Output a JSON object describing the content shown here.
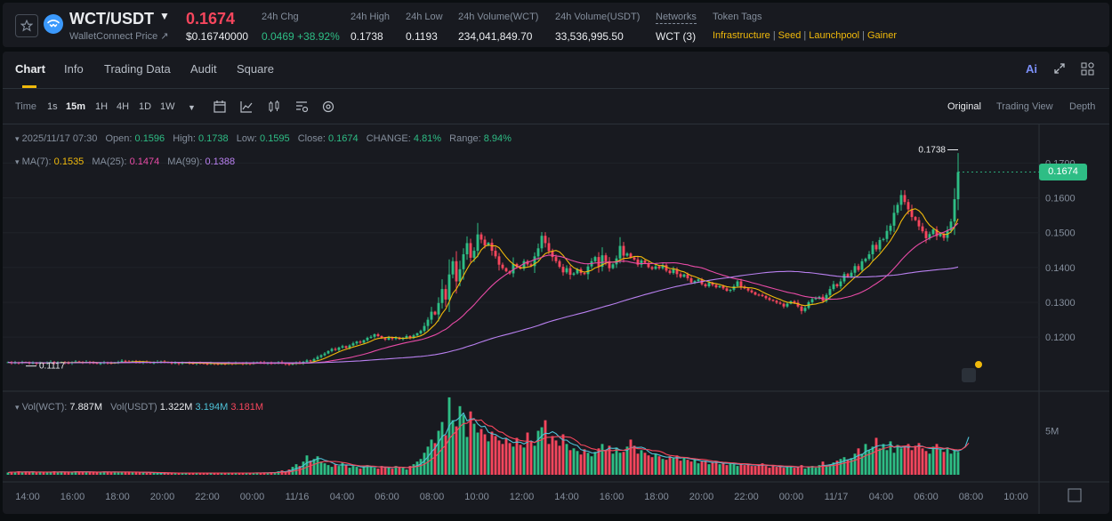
{
  "header": {
    "pair": "WCT/USDT",
    "subtitle": "WalletConnect Price ↗",
    "price": "0.1674",
    "price_usd": "$0.16740000",
    "stats": [
      {
        "label": "24h Chg",
        "value": "0.0469 +38.92%"
      },
      {
        "label": "24h High",
        "value": "0.1738"
      },
      {
        "label": "24h Low",
        "value": "0.1193"
      },
      {
        "label": "24h Volume(WCT)",
        "value": "234,041,849.70"
      },
      {
        "label": "24h Volume(USDT)",
        "value": "33,536,995.50"
      }
    ],
    "networks_label": "Networks",
    "networks_value": "WCT (3)",
    "tags_label": "Token Tags",
    "tags": [
      "Infrastructure",
      "Seed",
      "Launchpool",
      "Gainer"
    ],
    "tag_separator": "|"
  },
  "tabs": [
    "Chart",
    "Info",
    "Trading Data",
    "Audit",
    "Square"
  ],
  "right_icons": {
    "ai": "Ai"
  },
  "toolbar": {
    "timeframes": [
      "Time",
      "1s",
      "15m",
      "1H",
      "4H",
      "1D",
      "1W"
    ],
    "active_timeframe": "15m",
    "views": [
      "Original",
      "Trading View",
      "Depth"
    ],
    "active_view": "Original"
  },
  "legend": {
    "ohlc": {
      "date": "2025/11/17 07:30",
      "open_label": "Open:",
      "open": "0.1596",
      "high_label": "High:",
      "high": "0.1738",
      "low_label": "Low:",
      "low": "0.1595",
      "close_label": "Close:",
      "close": "0.1674",
      "change_label": "CHANGE:",
      "change": "4.81%",
      "range_label": "Range:",
      "range": "8.94%"
    },
    "ma": {
      "ma7_label": "MA(7):",
      "ma7": "0.1535",
      "ma25_label": "MA(25):",
      "ma25": "0.1474",
      "ma99_label": "MA(99):",
      "ma99": "0.1388"
    },
    "vol": {
      "wct_label": "Vol(WCT):",
      "wct": "7.887M",
      "usdt_label": "Vol(USDT)",
      "usdt": "1.322M",
      "ma1": "3.194M",
      "ma2": "3.181M"
    }
  },
  "colors": {
    "up": "#2ebd85",
    "down": "#f6465d",
    "ma7": "#f0b90b",
    "ma25": "#e84ba6",
    "ma99": "#b980f0",
    "vol_ma1": "#4fc3d8",
    "vol_ma2": "#f6465d",
    "accent": "#f0b90b"
  },
  "chart_data": {
    "type": "candlestick",
    "price_axis": [
      "0.1700",
      "0.1600",
      "0.1500",
      "0.1400",
      "0.1300",
      "0.1200"
    ],
    "ylim": [
      0.106,
      0.1775
    ],
    "volume_axis": [
      "5M"
    ],
    "volume_ylim": [
      0,
      9500000
    ],
    "time_axis": [
      "14:00",
      "16:00",
      "18:00",
      "20:00",
      "22:00",
      "00:00",
      "11/16",
      "04:00",
      "06:00",
      "08:00",
      "10:00",
      "12:00",
      "14:00",
      "16:00",
      "18:00",
      "20:00",
      "22:00",
      "00:00",
      "11/17",
      "04:00",
      "06:00",
      "08:00",
      "10:00"
    ],
    "current_price": "0.1674",
    "high_marker": "0.1738",
    "low_marker": "0.1117",
    "series": [
      {
        "name": "price (close)",
        "values": [
          0.1128,
          0.1125,
          0.1127,
          0.1126,
          0.1128,
          0.1127,
          0.1125,
          0.1126,
          0.1124,
          0.1126,
          0.1125,
          0.1127,
          0.1129,
          0.1126,
          0.1127,
          0.1128,
          0.1126,
          0.1125,
          0.1128,
          0.113,
          0.1128,
          0.1127,
          0.1129,
          0.1127,
          0.1126,
          0.1124,
          0.1125,
          0.1127,
          0.1126,
          0.1125,
          0.1127,
          0.1129,
          0.1132,
          0.113,
          0.1129,
          0.1131,
          0.1128,
          0.1127,
          0.1129,
          0.1128,
          0.1126,
          0.1127,
          0.1129,
          0.113,
          0.1128,
          0.1127,
          0.1125,
          0.1126,
          0.1124,
          0.1126,
          0.1127,
          0.1125,
          0.1124,
          0.1126,
          0.1125,
          0.1124,
          0.1123,
          0.1125,
          0.1124,
          0.1122,
          0.1124,
          0.1123,
          0.1125,
          0.1124,
          0.1126,
          0.1125,
          0.1123,
          0.1125,
          0.1124,
          0.1126,
          0.1128,
          0.1127,
          0.1125,
          0.1126,
          0.1124,
          0.1126,
          0.1128,
          0.1125,
          0.1123,
          0.1121,
          0.1124,
          0.1127,
          0.1125,
          0.1129,
          0.1133,
          0.1131,
          0.1137,
          0.1143,
          0.1148,
          0.1153,
          0.116,
          0.1166,
          0.1163,
          0.117,
          0.1174,
          0.1169,
          0.1176,
          0.1182,
          0.1187,
          0.1184,
          0.1191,
          0.1198,
          0.1201,
          0.1208,
          0.1203,
          0.1197,
          0.1193,
          0.1199,
          0.1195,
          0.1199,
          0.1194,
          0.1197,
          0.1203,
          0.1198,
          0.1205,
          0.1211,
          0.1218,
          0.1232,
          0.125,
          0.1273,
          0.1265,
          0.1298,
          0.1338,
          0.1308,
          0.138,
          0.1418,
          0.136,
          0.1395,
          0.1438,
          0.147,
          0.1428,
          0.1448,
          0.1495,
          0.148,
          0.1463,
          0.1471,
          0.1448,
          0.1432,
          0.1408,
          0.1398,
          0.1389,
          0.1383,
          0.141,
          0.1402,
          0.1397,
          0.1418,
          0.1409,
          0.1404,
          0.1432,
          0.1455,
          0.1491,
          0.147,
          0.1447,
          0.143,
          0.1418,
          0.1402,
          0.1386,
          0.1398,
          0.1379,
          0.1383,
          0.1395,
          0.1384,
          0.1381,
          0.1403,
          0.1418,
          0.143,
          0.1402,
          0.1435,
          0.1418,
          0.1398,
          0.1409,
          0.1426,
          0.1462,
          0.1434,
          0.144,
          0.1429,
          0.1423,
          0.1408,
          0.142,
          0.1413,
          0.1401,
          0.1396,
          0.1403,
          0.1398,
          0.1407,
          0.1391,
          0.1384,
          0.1395,
          0.1381,
          0.1373,
          0.138,
          0.1369,
          0.1357,
          0.1361,
          0.1366,
          0.1352,
          0.1346,
          0.1356,
          0.135,
          0.1343,
          0.1347,
          0.134,
          0.1333,
          0.1336,
          0.1346,
          0.136,
          0.1345,
          0.134,
          0.1334,
          0.1329,
          0.1322,
          0.1321,
          0.1318,
          0.1312,
          0.1307,
          0.1304,
          0.1299,
          0.1296,
          0.1288,
          0.1296,
          0.1303,
          0.1299,
          0.1288,
          0.1275,
          0.1284,
          0.13,
          0.1309,
          0.1312,
          0.1316,
          0.1304,
          0.1321,
          0.1338,
          0.1352,
          0.1346,
          0.136,
          0.1381,
          0.1374,
          0.1385,
          0.1404,
          0.1393,
          0.1418,
          0.1425,
          0.1438,
          0.1465,
          0.1452,
          0.1479,
          0.1482,
          0.1505,
          0.152,
          0.1557,
          0.158,
          0.1608,
          0.1588,
          0.1567,
          0.1545,
          0.1536,
          0.1518,
          0.1504,
          0.1484,
          0.1496,
          0.1509,
          0.149,
          0.1497,
          0.1485,
          0.1506,
          0.1532,
          0.1596,
          0.1674
        ]
      },
      {
        "name": "volume",
        "values": [
          0.25,
          0.35,
          0.3,
          0.4,
          0.28,
          0.32,
          0.3,
          0.38,
          0.25,
          0.3,
          0.28,
          0.33,
          0.3,
          0.4,
          0.27,
          0.35,
          0.3,
          0.28,
          0.32,
          0.4,
          0.35,
          0.3,
          0.28,
          0.33,
          0.3,
          0.27,
          0.35,
          0.38,
          0.3,
          0.28,
          0.32,
          0.3,
          0.35,
          0.3,
          0.28,
          0.27,
          0.32,
          0.3,
          0.25,
          0.22,
          0.24,
          0.2,
          0.22,
          0.19,
          0.2,
          0.22,
          0.18,
          0.2,
          0.19,
          0.21,
          0.2,
          0.22,
          0.18,
          0.2,
          0.21,
          0.19,
          0.2,
          0.18,
          0.22,
          0.2,
          0.19,
          0.21,
          0.2,
          0.22,
          0.18,
          0.2,
          0.19,
          0.21,
          0.2,
          0.22,
          0.25,
          0.2,
          0.22,
          0.24,
          0.3,
          0.25,
          0.4,
          0.5,
          0.35,
          0.6,
          0.9,
          1.2,
          1.0,
          1.5,
          2.2,
          1.6,
          1.8,
          2.1,
          1.5,
          1.3,
          1.1,
          0.9,
          1.2,
          1.0,
          1.4,
          1.1,
          0.8,
          1.0,
          0.9,
          0.7,
          1.0,
          1.1,
          0.9,
          0.8,
          0.7,
          1.0,
          0.8,
          0.9,
          0.7,
          1.0,
          0.8,
          0.9,
          0.6,
          1.0,
          1.2,
          1.5,
          1.8,
          2.5,
          3.2,
          4.0,
          3.6,
          5.0,
          6.0,
          4.5,
          8.8,
          6.2,
          5.5,
          7.8,
          6.8,
          4.3,
          7.2,
          5.8,
          4.8,
          5.2,
          4.6,
          3.8,
          4.9,
          4.4,
          3.9,
          3.5,
          4.1,
          3.6,
          3.2,
          4.2,
          3.4,
          3.1,
          4.8,
          3.7,
          3.3,
          5.0,
          5.4,
          6.2,
          3.5,
          4.4,
          3.9,
          3.3,
          4.6,
          3.5,
          2.8,
          3.0,
          2.7,
          2.3,
          2.9,
          2.5,
          2.1,
          2.6,
          3.0,
          3.5,
          2.8,
          3.3,
          2.4,
          3.1,
          2.5,
          2.6,
          3.2,
          4.0,
          3.3,
          2.4,
          2.8,
          2.5,
          2.2,
          2.0,
          2.4,
          2.1,
          1.8,
          1.7,
          2.1,
          1.9,
          2.2,
          1.6,
          2.0,
          1.7,
          1.5,
          1.8,
          1.3,
          1.5,
          1.6,
          1.2,
          1.4,
          1.5,
          1.2,
          1.3,
          1.1,
          1.4,
          1.2,
          1.0,
          1.3,
          1.1,
          1.2,
          1.0,
          1.0,
          1.1,
          1.3,
          1.0,
          0.8,
          1.0,
          0.9,
          1.0,
          0.8,
          0.9,
          1.0,
          0.8,
          0.9,
          1.1,
          0.7,
          0.9,
          1.0,
          0.8,
          1.1,
          1.5,
          1.0,
          1.2,
          1.4,
          1.6,
          1.8,
          2.0,
          1.7,
          1.9,
          2.4,
          3.0,
          2.4,
          3.5,
          2.8,
          3.2,
          4.2,
          3.0,
          3.5,
          2.8,
          3.8,
          2.5,
          3.4,
          3.0,
          3.2,
          3.5,
          2.8,
          3.3,
          3.6,
          3.0,
          2.7,
          2.4,
          3.2,
          3.5,
          2.9,
          2.6,
          3.1,
          2.4,
          2.8,
          2.6,
          3.4,
          4.8,
          7.9
        ]
      }
    ]
  }
}
